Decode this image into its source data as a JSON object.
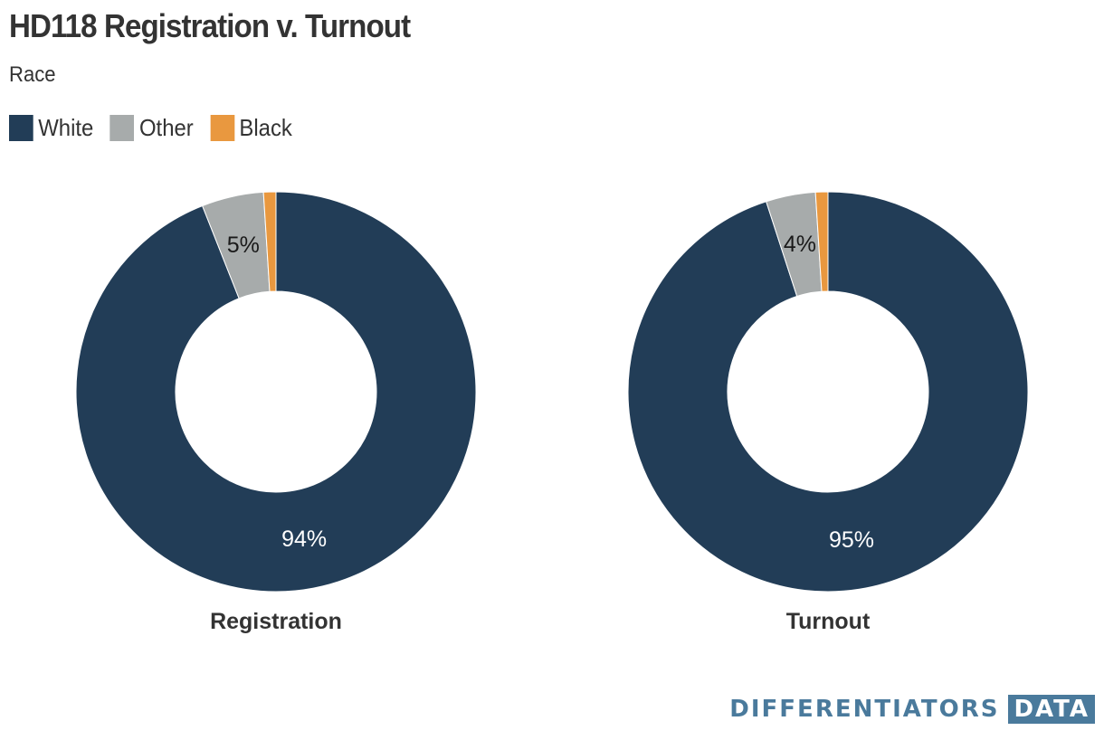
{
  "title": "HD118 Registration v. Turnout",
  "subtitle": "Race",
  "legend": [
    {
      "label": "White",
      "color": "#223d57"
    },
    {
      "label": "Other",
      "color": "#a7abab"
    },
    {
      "label": "Black",
      "color": "#e9983f"
    }
  ],
  "chart_data": [
    {
      "type": "pie",
      "donut": true,
      "caption": "Registration",
      "categories": [
        "White",
        "Other",
        "Black"
      ],
      "values": [
        94,
        5,
        1
      ],
      "colors": [
        "#223d57",
        "#a7abab",
        "#e9983f"
      ],
      "data_labels": [
        "94%",
        "5%",
        ""
      ]
    },
    {
      "type": "pie",
      "donut": true,
      "caption": "Turnout",
      "categories": [
        "White",
        "Other",
        "Black"
      ],
      "values": [
        95,
        4,
        1
      ],
      "colors": [
        "#223d57",
        "#a7abab",
        "#e9983f"
      ],
      "data_labels": [
        "95%",
        "4%",
        ""
      ]
    }
  ],
  "brand": {
    "name": "DIFFERENTIATORS",
    "box": "DATA"
  }
}
